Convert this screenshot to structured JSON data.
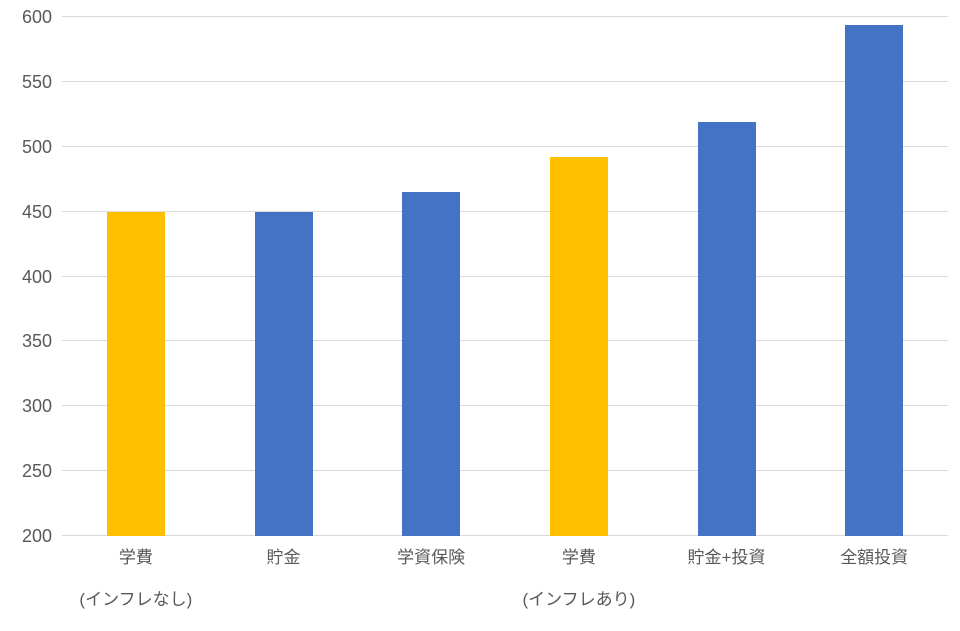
{
  "chart_data": {
    "type": "bar",
    "title": "",
    "xlabel": "",
    "ylabel": "",
    "categories": [
      "学費",
      "貯金",
      "学資保険",
      "学費",
      "貯金+投資",
      "全額投資"
    ],
    "sub_labels": [
      "(インフレなし)",
      "",
      "",
      "(インフレあり)",
      "",
      ""
    ],
    "values": [
      450,
      450,
      465,
      492,
      519,
      594
    ],
    "bar_colors": [
      "#FFC000",
      "#4472C4",
      "#4472C4",
      "#FFC000",
      "#4472C4",
      "#4472C4"
    ],
    "ylim": [
      200,
      600
    ],
    "yticks": [
      200,
      250,
      300,
      350,
      400,
      450,
      500,
      550,
      600
    ],
    "grid": true,
    "legend": "none",
    "colors": {
      "highlight_bar": "#FFC000",
      "default_bar": "#4472C4",
      "gridline": "#d9d9d9",
      "tick_label": "#595959",
      "background": "#ffffff"
    }
  }
}
